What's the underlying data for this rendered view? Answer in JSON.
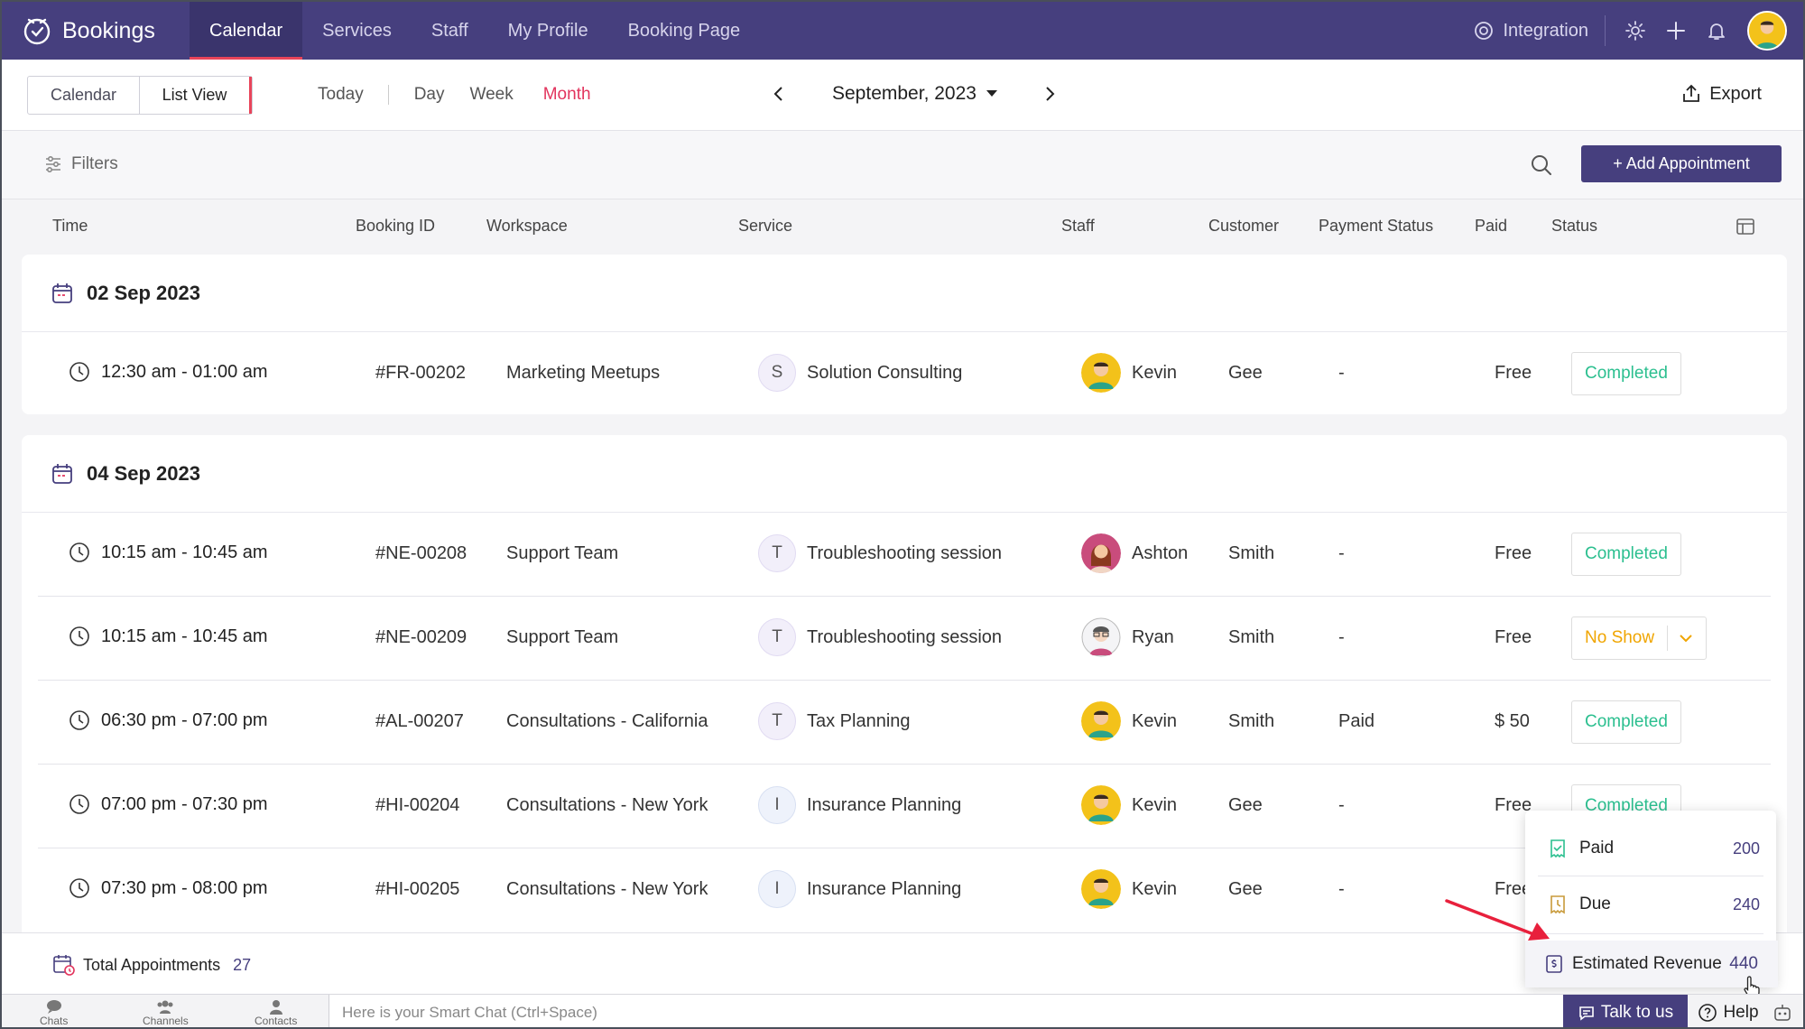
{
  "app": {
    "name": "Bookings"
  },
  "nav": {
    "tabs": [
      "Calendar",
      "Services",
      "Staff",
      "My Profile",
      "Booking Page"
    ],
    "active": "Calendar"
  },
  "topright": {
    "integration": "Integration"
  },
  "toolbar": {
    "calendar_btn": "Calendar",
    "listview_btn": "List View",
    "today": "Today",
    "day": "Day",
    "week": "Week",
    "month": "Month",
    "current_month": "September, 2023",
    "export": "Export"
  },
  "filterbar": {
    "filters": "Filters",
    "add_appointment": "+ Add Appointment"
  },
  "columns": {
    "time": "Time",
    "booking_id": "Booking ID",
    "workspace": "Workspace",
    "service": "Service",
    "staff": "Staff",
    "customer": "Customer",
    "payment_status": "Payment Status",
    "paid": "Paid",
    "status": "Status"
  },
  "groups": [
    {
      "date": "02 Sep 2023",
      "rows": [
        {
          "time": "12:30 am - 01:00 am",
          "id": "#FR-00202",
          "workspace": "Marketing Meetups",
          "initial": "S",
          "service": "Solution Consulting",
          "staff": "Kevin",
          "customer": "Gee",
          "payment": "-",
          "paid": "Free",
          "status": "Completed"
        }
      ]
    },
    {
      "date": "04 Sep 2023",
      "rows": [
        {
          "time": "10:15 am - 10:45 am",
          "id": "#NE-00208",
          "workspace": "Support Team",
          "initial": "T",
          "service": "Troubleshooting session",
          "staff": "Ashton",
          "customer": "Smith",
          "payment": "-",
          "paid": "Free",
          "status": "Completed"
        },
        {
          "time": "10:15 am - 10:45 am",
          "id": "#NE-00209",
          "workspace": "Support Team",
          "initial": "T",
          "service": "Troubleshooting session",
          "staff": "Ryan",
          "customer": "Smith",
          "payment": "-",
          "paid": "Free",
          "status": "No Show"
        },
        {
          "time": "06:30 pm - 07:00 pm",
          "id": "#AL-00207",
          "workspace": "Consultations - California",
          "initial": "T",
          "service": "Tax Planning",
          "staff": "Kevin",
          "customer": "Smith",
          "payment": "Paid",
          "paid": "$ 50",
          "status": "Completed"
        },
        {
          "time": "07:00 pm - 07:30 pm",
          "id": "#HI-00204",
          "workspace": "Consultations - New York",
          "initial": "I",
          "service": "Insurance Planning",
          "staff": "Kevin",
          "customer": "Gee",
          "payment": "-",
          "paid": "Free",
          "status": "Completed"
        },
        {
          "time": "07:30 pm - 08:00 pm",
          "id": "#HI-00205",
          "workspace": "Consultations - New York",
          "initial": "I",
          "service": "Insurance Planning",
          "staff": "Kevin",
          "customer": "Gee",
          "payment": "-",
          "paid": "Free",
          "status": ""
        }
      ]
    }
  ],
  "footer": {
    "total_label": "Total Appointments",
    "total_count": "27"
  },
  "revenue_popup": {
    "paid_label": "Paid",
    "paid_value": "200",
    "due_label": "Due",
    "due_value": "240",
    "estimated_label": "Estimated Revenue",
    "estimated_value": "440"
  },
  "chatbar": {
    "chats": "Chats",
    "channels": "Channels",
    "contacts": "Contacts",
    "smart_chat": "Here is your Smart Chat (Ctrl+Space)",
    "talk": "Talk to us",
    "help": "Help"
  },
  "colors": {
    "brand": "#463f7e",
    "accent": "#e2345d",
    "completed": "#2bbf8f",
    "noshow": "#f0a500"
  }
}
